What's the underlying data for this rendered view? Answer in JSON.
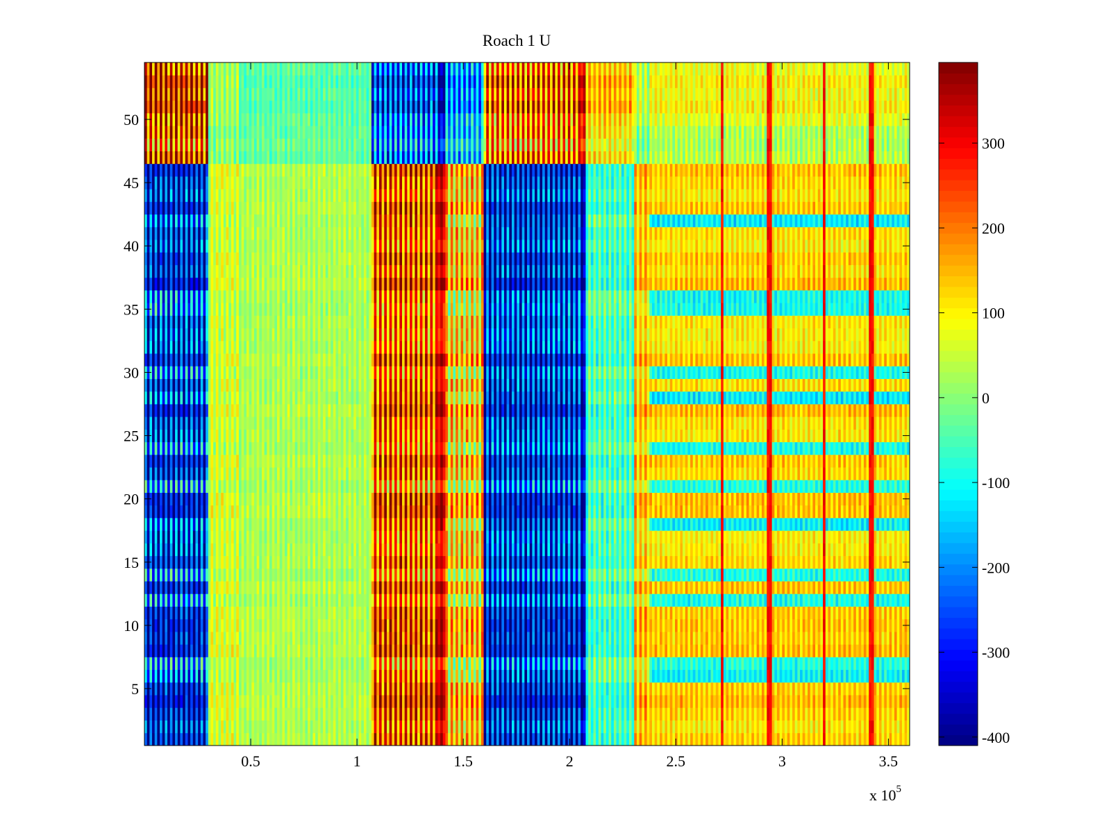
{
  "chart_data": {
    "type": "heatmap",
    "title": "Roach 1 U",
    "xlabel": "",
    "ylabel": "",
    "x_multiplier_label": "x 10",
    "x_multiplier_exponent": "5",
    "xlim": [
      0,
      3.6
    ],
    "ylim": [
      0.5,
      54.5
    ],
    "x_ticks": [
      0.5,
      1,
      1.5,
      2,
      2.5,
      3,
      3.5
    ],
    "x_tick_labels": [
      "0.5",
      "1",
      "1.5",
      "2",
      "2.5",
      "3",
      "3.5"
    ],
    "y_ticks": [
      5,
      10,
      15,
      20,
      25,
      30,
      35,
      40,
      45,
      50
    ],
    "y_tick_labels": [
      "5",
      "10",
      "15",
      "20",
      "25",
      "30",
      "35",
      "40",
      "45",
      "50"
    ],
    "rows": 54,
    "colormap": "jet",
    "color_range": [
      -410,
      395
    ],
    "colorbar_ticks": [
      300,
      200,
      100,
      0,
      -100,
      -200,
      -300,
      -400
    ],
    "colorbar_tick_labels": [
      "300",
      "200",
      "100",
      "0",
      "-100",
      "-200",
      "-300",
      "-400"
    ],
    "grid": false,
    "column_segments": [
      {
        "x_start": 0.0,
        "x_end": 0.3,
        "level_high_rows": -320,
        "level_mid_rows": -200,
        "level_top_rows": 300,
        "stripe": 160
      },
      {
        "x_start": 0.3,
        "x_end": 0.45,
        "level_high_rows": 60,
        "level_mid_rows": 40,
        "level_top_rows": 20,
        "stripe": 50
      },
      {
        "x_start": 0.45,
        "x_end": 1.07,
        "level_high_rows": 30,
        "level_mid_rows": 20,
        "level_top_rows": -40,
        "stripe": 30
      },
      {
        "x_start": 1.07,
        "x_end": 1.38,
        "level_high_rows": 230,
        "level_mid_rows": 200,
        "level_top_rows": -260,
        "stripe": 140
      },
      {
        "x_start": 1.38,
        "x_end": 1.42,
        "level_high_rows": 320,
        "level_mid_rows": 300,
        "level_top_rows": -380,
        "stripe": 40
      },
      {
        "x_start": 1.42,
        "x_end": 1.6,
        "level_high_rows": 140,
        "level_mid_rows": 60,
        "level_top_rows": -200,
        "stripe": 110
      },
      {
        "x_start": 1.6,
        "x_end": 2.05,
        "level_high_rows": -300,
        "level_mid_rows": -260,
        "level_top_rows": 230,
        "stripe": 150
      },
      {
        "x_start": 2.05,
        "x_end": 2.08,
        "level_high_rows": -360,
        "level_mid_rows": -320,
        "level_top_rows": 330,
        "stripe": 40
      },
      {
        "x_start": 2.08,
        "x_end": 2.3,
        "level_high_rows": -60,
        "level_mid_rows": -20,
        "level_top_rows": 150,
        "stripe": 60
      },
      {
        "x_start": 2.3,
        "x_end": 2.38,
        "level_high_rows": 140,
        "level_mid_rows": 100,
        "level_top_rows": 40,
        "stripe": 60
      },
      {
        "x_start": 2.38,
        "x_end": 3.6,
        "level_high_rows": 120,
        "level_mid_rows": -100,
        "level_top_rows": 90,
        "stripe": 40
      }
    ],
    "vertical_spikes_x": [
      2.72,
      2.94,
      3.2,
      3.42
    ]
  }
}
